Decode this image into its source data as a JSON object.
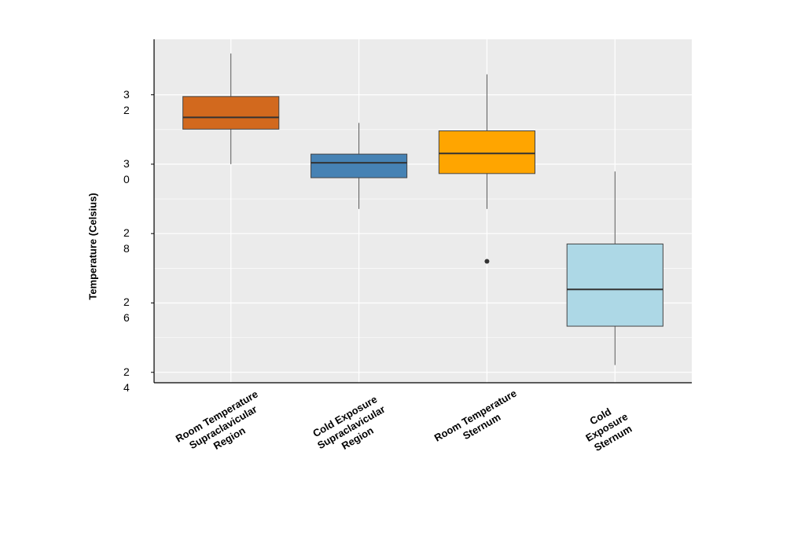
{
  "chart_data": {
    "type": "box",
    "y_label": "Temperature (Celsius)",
    "categories": [
      "Room Temperature\nSupraclavicular\nRegion",
      "Cold Exposure\nSupraclavicular\nRegion",
      "Room Temperature\nSternum",
      "Cold\nExposure\nSternum"
    ],
    "boxes": [
      {
        "whislo": 30.0,
        "q1": 31.01,
        "med": 31.35,
        "q3": 31.95,
        "whishi": 33.19,
        "fliers": []
      },
      {
        "whislo": 28.71,
        "q1": 29.61,
        "med": 30.04,
        "q3": 30.29,
        "whishi": 31.19,
        "fliers": []
      },
      {
        "whislo": 28.71,
        "q1": 29.73,
        "med": 30.31,
        "q3": 30.96,
        "whishi": 32.59,
        "fliers": [
          27.2
        ]
      },
      {
        "whislo": 24.21,
        "q1": 25.33,
        "med": 26.39,
        "q3": 27.7,
        "whishi": 29.79,
        "fliers": []
      }
    ],
    "colors": [
      "#d2691e",
      "#4682b4",
      "#ffa500",
      "#add8e6"
    ],
    "ylim": [
      23.7,
      33.6
    ],
    "yticks": [
      24,
      26,
      28,
      30,
      32
    ],
    "grid": true
  }
}
